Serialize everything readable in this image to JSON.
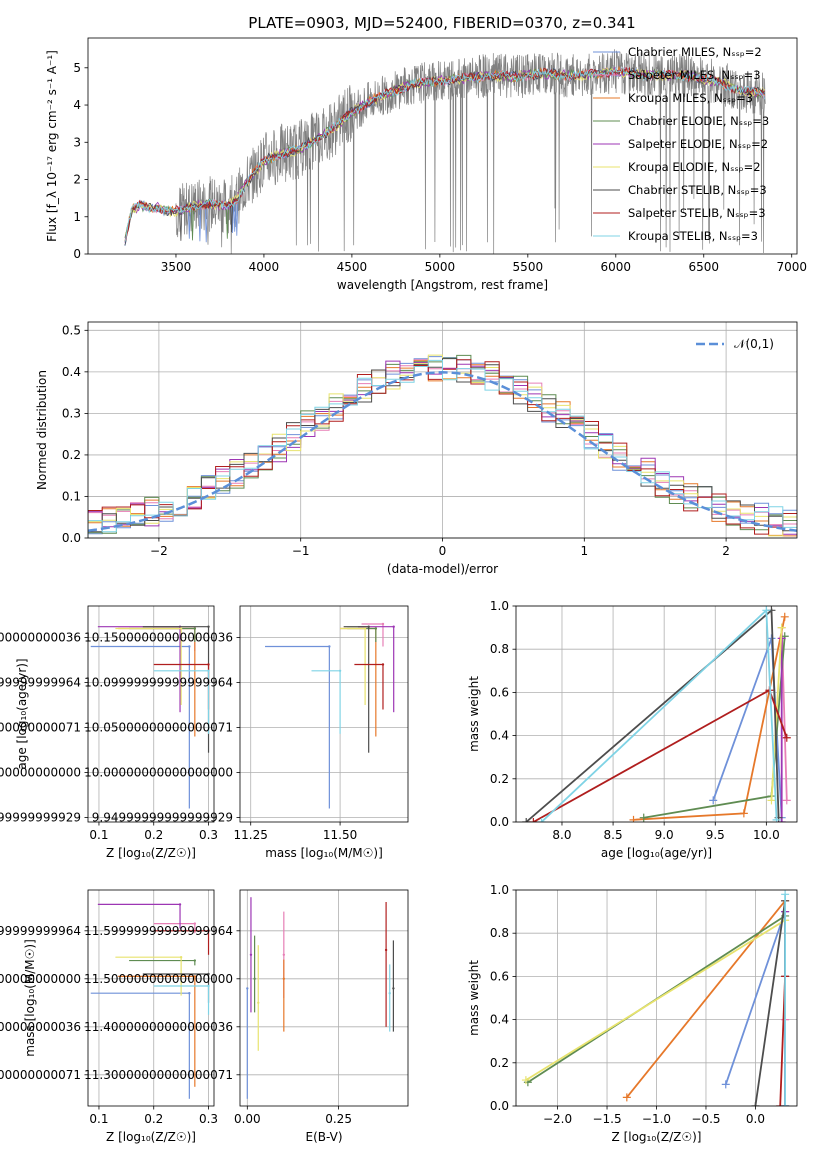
{
  "figure": {
    "title": "PLATE=0903, MJD=52400, FIBERID=0370, z=0.341"
  },
  "colors": {
    "data": "#808080",
    "models": [
      "#6f91d9",
      "#e77fb6",
      "#e6782a",
      "#5f8c52",
      "#9d36b4",
      "#e8e36e",
      "#4d4d4d",
      "#b01e1e",
      "#7fd3e5"
    ]
  },
  "chart_data": [
    {
      "id": "spectrum",
      "type": "line",
      "xlabel": "wavelength [Angstrom, rest frame]",
      "ylabel": "Flux [f_λ 10⁻¹⁷ erg cm⁻² s⁻¹ A⁻¹]",
      "xlim": [
        3000,
        7030
      ],
      "ylim": [
        0,
        5.8
      ],
      "xticks": [
        3500,
        4000,
        4500,
        5000,
        5500,
        6000,
        6500,
        7000
      ],
      "yticks": [
        0,
        1,
        2,
        3,
        4,
        5
      ],
      "grid": false,
      "legend_position": "top-right",
      "continuum": {
        "x": [
          3200,
          3250,
          3300,
          3350,
          3400,
          3450,
          3500,
          3550,
          3600,
          3650,
          3700,
          3750,
          3800,
          3850,
          3900,
          3950,
          4000,
          4100,
          4200,
          4300,
          4400,
          4500,
          4600,
          4700,
          4800,
          4900,
          5000,
          5100,
          5200,
          5300,
          5400,
          5500,
          5600,
          5700,
          5800,
          5900,
          6000,
          6200,
          6400,
          6600,
          6700,
          6850
        ],
        "y": [
          0.1,
          1.2,
          1.3,
          1.25,
          1.25,
          1.15,
          1.15,
          1.2,
          1.3,
          1.3,
          1.35,
          1.3,
          1.3,
          1.5,
          1.9,
          2.2,
          2.5,
          2.7,
          2.8,
          3.1,
          3.4,
          3.8,
          4.1,
          4.3,
          4.5,
          4.6,
          4.65,
          4.7,
          4.75,
          4.8,
          4.75,
          4.8,
          4.85,
          4.8,
          4.8,
          4.85,
          4.9,
          4.8,
          4.8,
          4.6,
          4.4,
          4.3
        ]
      },
      "series": [
        {
          "name": "Chabrier MILES, N_SSP=2"
        },
        {
          "name": "Salpeter MILES, N_SSP=3"
        },
        {
          "name": "Kroupa MILES, N_SSP=3"
        },
        {
          "name": "Chabrier ELODIE, N_SSP=3"
        },
        {
          "name": "Salpeter ELODIE, N_SSP=2"
        },
        {
          "name": "Kroupa ELODIE, N_SSP=2"
        },
        {
          "name": "Chabrier STELIB, N_SSP=3"
        },
        {
          "name": "Salpeter STELIB, N_SSP=3"
        },
        {
          "name": "Kroupa STELIB, N_SSP=3"
        }
      ]
    },
    {
      "id": "residuals",
      "type": "line",
      "xlabel": "(data-model)/error",
      "ylabel": "Normed distribution",
      "xlim": [
        -2.5,
        2.5
      ],
      "ylim": [
        0,
        0.52
      ],
      "xticks": [
        -2,
        -1,
        0,
        1,
        2
      ],
      "yticks": [
        0.0,
        0.1,
        0.2,
        0.3,
        0.4,
        0.5
      ],
      "grid": true,
      "legend_position": "top-right",
      "legend": "𝒩(0,1)",
      "bins": {
        "start": -2.5,
        "width": 0.1,
        "count": 50
      }
    },
    {
      "id": "age-vs-Z",
      "type": "scatter",
      "xlabel": "Z [log₁₀(Z/Z☉)]",
      "ylabel": "age  [log₁₀(age/yr)]",
      "xlim": [
        0.08,
        0.31
      ],
      "ylim": [
        9.945,
        10.185
      ],
      "xticks": [
        0.1,
        0.2,
        0.3
      ],
      "yticks": [
        9.95,
        10.0,
        10.05,
        10.1,
        10.15
      ],
      "grid": true,
      "points": [
        {
          "x": 0.265,
          "y": 10.14,
          "xerr": [
            0.18,
            0.0
          ],
          "yerr": [
            0.18,
            0.0
          ]
        },
        {
          "x": 0.275,
          "y": 10.16,
          "xerr": [
            0.075,
            0.0
          ],
          "yerr": [
            0.025,
            0.0
          ]
        },
        {
          "x": 0.275,
          "y": 10.16,
          "xerr": [
            0.14,
            0.0
          ],
          "yerr": [
            0.12,
            0.0
          ]
        },
        {
          "x": 0.275,
          "y": 10.16,
          "xerr": [
            0.12,
            0.0
          ],
          "yerr": [
            0.015,
            0.0
          ]
        },
        {
          "x": 0.248,
          "y": 10.162,
          "xerr": [
            0.15,
            0.0
          ],
          "yerr": [
            0.095,
            0.0
          ]
        },
        {
          "x": 0.25,
          "y": 10.16,
          "xerr": [
            0.12,
            0.0
          ],
          "yerr": [
            0.085,
            0.0
          ]
        },
        {
          "x": 0.3,
          "y": 10.162,
          "xerr": [
            0.12,
            0.0
          ],
          "yerr": [
            0.14,
            0.0
          ]
        },
        {
          "x": 0.3,
          "y": 10.12,
          "xerr": [
            0.1,
            0.0
          ],
          "yerr": [
            0.05,
            0.0
          ]
        },
        {
          "x": 0.3,
          "y": 10.113,
          "xerr": [
            0.1,
            0.0
          ],
          "yerr": [
            0.07,
            0.0
          ]
        }
      ]
    },
    {
      "id": "age-vs-mass",
      "type": "scatter",
      "xlabel": "mass [log₁₀(M/M☉)]",
      "ylabel": "",
      "xlim": [
        11.22,
        11.69
      ],
      "ylim": [
        9.945,
        10.185
      ],
      "xticks": [
        11.25,
        11.5
      ],
      "yticks": [
        9.95,
        10.0,
        10.05,
        10.1,
        10.15
      ],
      "grid": true,
      "points": [
        {
          "x": 11.47,
          "y": 10.14,
          "xerr": [
            0.18,
            0.0
          ],
          "yerr": [
            0.18,
            0.0
          ]
        },
        {
          "x": 11.62,
          "y": 10.165,
          "xerr": [
            0.06,
            0.0
          ],
          "yerr": [
            0.025,
            0.0
          ]
        },
        {
          "x": 11.6,
          "y": 10.16,
          "xerr": [
            0.1,
            0.0
          ],
          "yerr": [
            0.12,
            0.0
          ]
        },
        {
          "x": 11.6,
          "y": 10.16,
          "xerr": [
            0.08,
            0.0
          ],
          "yerr": [
            0.015,
            0.0
          ]
        },
        {
          "x": 11.65,
          "y": 10.162,
          "xerr": [
            0.1,
            0.0
          ],
          "yerr": [
            0.095,
            0.0
          ]
        },
        {
          "x": 11.57,
          "y": 10.16,
          "xerr": [
            0.07,
            0.0
          ],
          "yerr": [
            0.085,
            0.0
          ]
        },
        {
          "x": 11.58,
          "y": 10.162,
          "xerr": [
            0.07,
            0.0
          ],
          "yerr": [
            0.14,
            0.0
          ]
        },
        {
          "x": 11.62,
          "y": 10.12,
          "xerr": [
            0.08,
            0.0
          ],
          "yerr": [
            0.05,
            0.0
          ]
        },
        {
          "x": 11.5,
          "y": 10.113,
          "xerr": [
            0.08,
            0.0
          ],
          "yerr": [
            0.07,
            0.0
          ]
        }
      ]
    },
    {
      "id": "mass-weight-vs-age",
      "type": "line",
      "xlabel": "age  [log₁₀(age/yr)]",
      "ylabel": "mass weight",
      "xlim": [
        7.55,
        10.3
      ],
      "ylim": [
        0,
        1.0
      ],
      "xticks": [
        8.0,
        8.5,
        9.0,
        9.5,
        10.0
      ],
      "yticks": [
        0.0,
        0.2,
        0.4,
        0.6,
        0.8,
        1.0
      ],
      "grid": true,
      "series": [
        {
          "points": [
            [
              9.48,
              0.1
            ],
            [
              10.05,
              0.85
            ],
            [
              10.15,
              0.02
            ]
          ]
        },
        {
          "points": [
            [
              10.15,
              0.9
            ],
            [
              10.2,
              0.1
            ]
          ]
        },
        {
          "points": [
            [
              8.7,
              0.01
            ],
            [
              9.78,
              0.04
            ],
            [
              10.18,
              0.95
            ]
          ]
        },
        {
          "points": [
            [
              8.8,
              0.02
            ],
            [
              10.05,
              0.12
            ],
            [
              10.18,
              0.86
            ]
          ]
        },
        {
          "points": [
            [
              10.15,
              0.85
            ],
            [
              10.15,
              0.0
            ]
          ]
        },
        {
          "points": [
            [
              10.05,
              0.1
            ],
            [
              10.15,
              0.9
            ]
          ]
        },
        {
          "points": [
            [
              7.65,
              0.0
            ],
            [
              10.05,
              0.98
            ],
            [
              10.12,
              0.02
            ]
          ]
        },
        {
          "points": [
            [
              7.72,
              0.0
            ],
            [
              10.03,
              0.61
            ],
            [
              10.2,
              0.39
            ]
          ]
        },
        {
          "points": [
            [
              7.8,
              0.0
            ],
            [
              10.0,
              0.98
            ],
            [
              10.1,
              0.01
            ]
          ]
        }
      ]
    },
    {
      "id": "mass-vs-Z",
      "type": "scatter",
      "xlabel": "Z [log₁₀(Z/Z☉)]",
      "ylabel": "mass [log₁₀(M/M☉)]",
      "xlim": [
        0.08,
        0.31
      ],
      "ylim": [
        11.235,
        11.685
      ],
      "xticks": [
        0.1,
        0.2,
        0.3
      ],
      "yticks": [
        11.3,
        11.4,
        11.5,
        11.6
      ],
      "grid": true,
      "points": [
        {
          "x": 0.265,
          "y": 11.47,
          "xerr": [
            0.18,
            0.0
          ],
          "yerr": [
            0.22,
            0.0
          ]
        },
        {
          "x": 0.275,
          "y": 11.615,
          "xerr": [
            0.075,
            0.0
          ],
          "yerr": [
            0.02,
            0.0
          ]
        },
        {
          "x": 0.275,
          "y": 11.505,
          "xerr": [
            0.14,
            0.0
          ],
          "yerr": [
            0.23,
            0.0
          ]
        },
        {
          "x": 0.275,
          "y": 11.538,
          "xerr": [
            0.12,
            0.0
          ],
          "yerr": [
            0.01,
            0.0
          ]
        },
        {
          "x": 0.248,
          "y": 11.655,
          "xerr": [
            0.15,
            0.0
          ],
          "yerr": [
            0.05,
            0.0
          ]
        },
        {
          "x": 0.25,
          "y": 11.545,
          "xerr": [
            0.12,
            0.0
          ],
          "yerr": [
            0.08,
            0.0
          ]
        },
        {
          "x": 0.3,
          "y": 11.51,
          "xerr": [
            0.12,
            0.0
          ],
          "yerr": [
            0.06,
            0.0
          ]
        },
        {
          "x": 0.3,
          "y": 11.6,
          "xerr": [
            0.1,
            0.0
          ],
          "yerr": [
            0.05,
            0.0
          ]
        },
        {
          "x": 0.3,
          "y": 11.485,
          "xerr": [
            0.1,
            0.0
          ],
          "yerr": [
            0.06,
            0.0
          ]
        }
      ]
    },
    {
      "id": "mass-vs-EBV",
      "type": "scatter",
      "xlabel": "E(B-V)",
      "ylabel": "",
      "xlim": [
        -0.02,
        0.44
      ],
      "ylim": [
        11.235,
        11.685
      ],
      "xticks": [
        0.0,
        0.25
      ],
      "yticks": [
        11.3,
        11.4,
        11.5,
        11.6
      ],
      "grid": true,
      "points": [
        {
          "x": 0.0,
          "y": 11.48,
          "yerr": [
            0.23,
            0.0
          ]
        },
        {
          "x": 0.1,
          "y": 11.55,
          "yerr": [
            0.09,
            0.09
          ]
        },
        {
          "x": 0.1,
          "y": 11.5,
          "yerr": [
            0.11,
            0.04
          ]
        },
        {
          "x": 0.02,
          "y": 11.5,
          "yerr": [
            0.07,
            0.09
          ]
        },
        {
          "x": 0.01,
          "y": 11.55,
          "yerr": [
            0.12,
            0.12
          ]
        },
        {
          "x": 0.03,
          "y": 11.45,
          "yerr": [
            0.1,
            0.12
          ]
        },
        {
          "x": 0.4,
          "y": 11.48,
          "yerr": [
            0.09,
            0.1
          ]
        },
        {
          "x": 0.38,
          "y": 11.56,
          "yerr": [
            0.16,
            0.1
          ]
        },
        {
          "x": 0.39,
          "y": 11.47,
          "yerr": [
            0.08,
            0.06
          ]
        }
      ]
    },
    {
      "id": "mass-weight-vs-Z",
      "type": "line",
      "xlabel": "Z [log₁₀(Z/Z☉)]",
      "ylabel": "mass weight",
      "xlim": [
        -2.42,
        0.42
      ],
      "ylim": [
        0,
        1.0
      ],
      "xticks": [
        -2.0,
        -1.5,
        -1.0,
        -0.5,
        0.0
      ],
      "yticks": [
        0.0,
        0.2,
        0.4,
        0.6,
        0.8,
        1.0
      ],
      "grid": true,
      "series": [
        {
          "points": [
            [
              -0.3,
              0.1
            ],
            [
              0.3,
              0.9
            ],
            [
              0.3,
              0.0
            ]
          ]
        },
        {
          "points": [
            [
              0.3,
              0.95
            ],
            [
              0.3,
              0.4
            ]
          ]
        },
        {
          "points": [
            [
              -1.3,
              0.04
            ],
            [
              0.3,
              0.95
            ]
          ]
        },
        {
          "points": [
            [
              -2.3,
              0.11
            ],
            [
              0.3,
              0.88
            ],
            [
              0.3,
              0.0
            ]
          ]
        },
        {
          "points": [
            [
              0.3,
              0.9
            ],
            [
              0.3,
              0.0
            ]
          ]
        },
        {
          "points": [
            [
              -2.32,
              0.12
            ],
            [
              0.3,
              0.86
            ]
          ]
        },
        {
          "points": [
            [
              0.0,
              0.0
            ],
            [
              0.3,
              0.95
            ],
            [
              0.3,
              0.6
            ]
          ]
        },
        {
          "points": [
            [
              0.25,
              0.0
            ],
            [
              0.3,
              0.6
            ]
          ]
        },
        {
          "points": [
            [
              0.3,
              0.98
            ],
            [
              0.3,
              0.0
            ]
          ]
        }
      ]
    }
  ]
}
